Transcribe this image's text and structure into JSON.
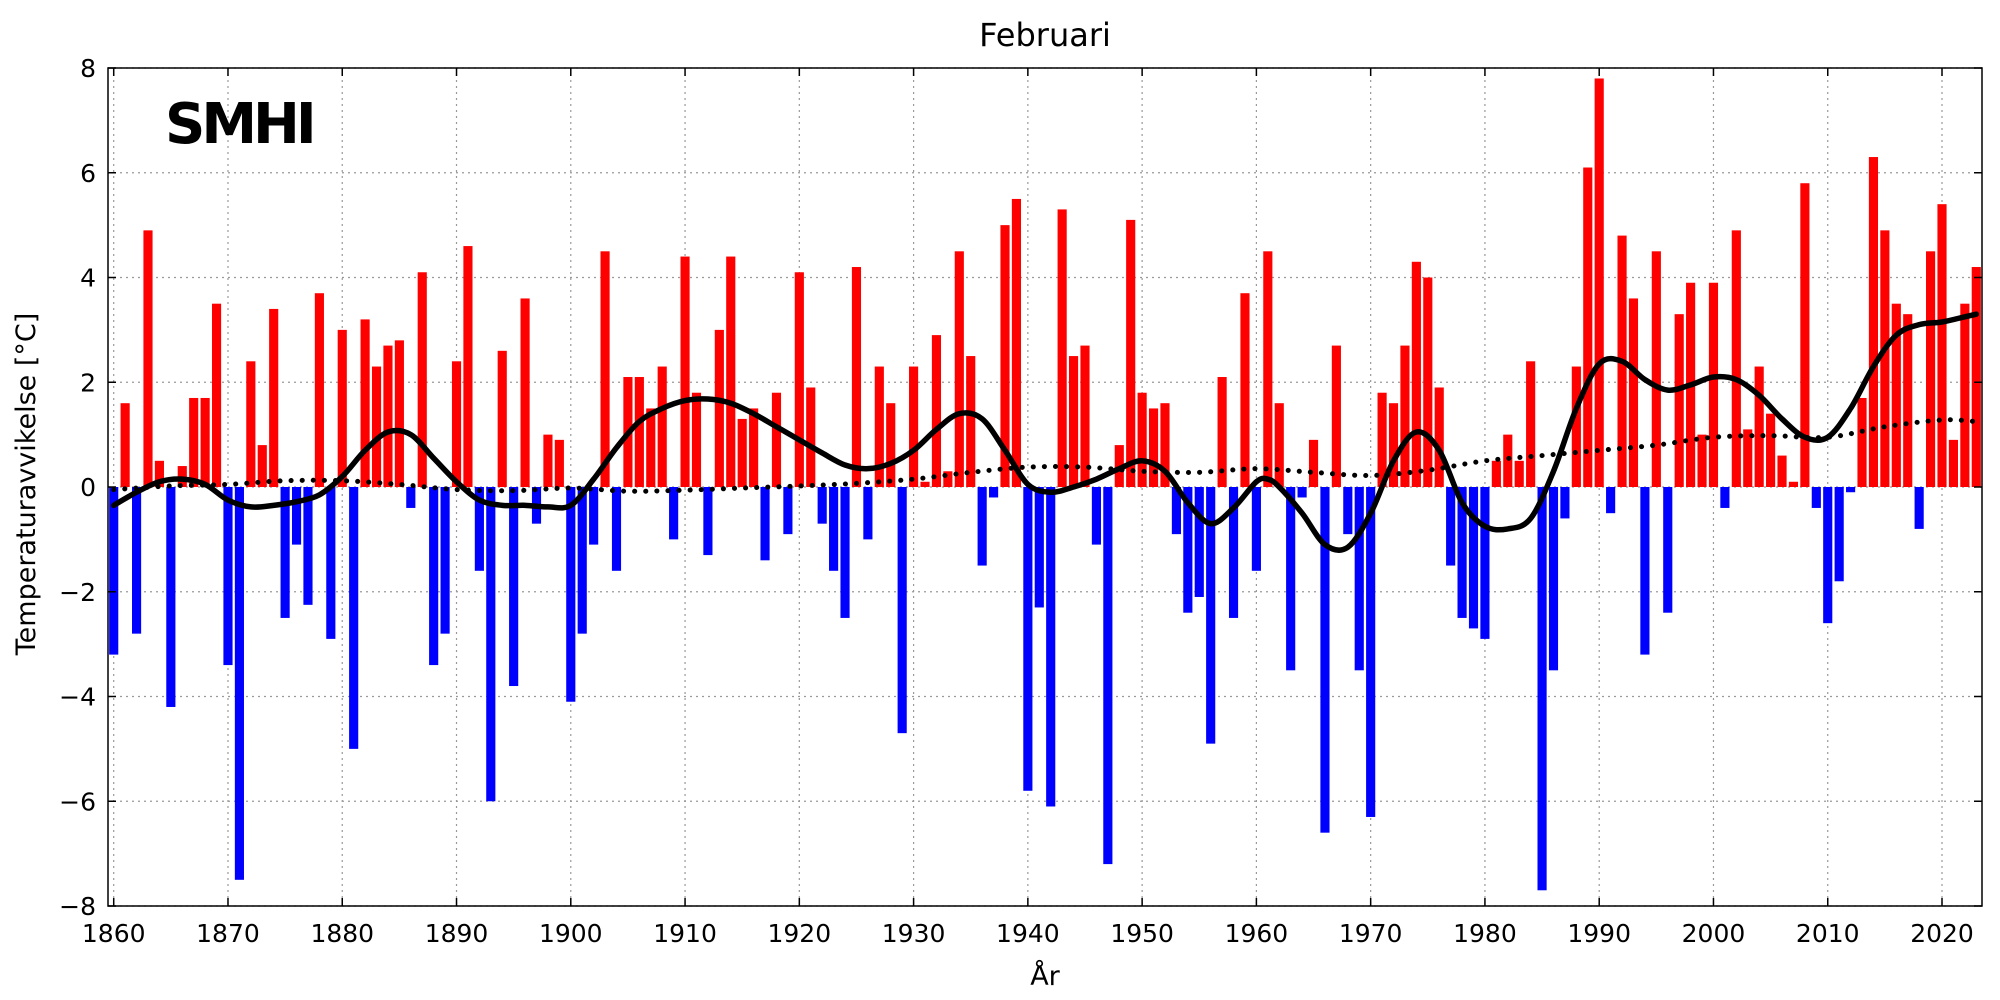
{
  "logo_text": "SMHI",
  "chart_data": {
    "type": "bar",
    "title": "Februari",
    "xlabel": "År",
    "ylabel": "Temperaturavvikelse [°C]",
    "xlim": [
      1859.5,
      2023.5
    ],
    "ylim": [
      -8,
      8
    ],
    "xticks": [
      1860,
      1870,
      1880,
      1890,
      1900,
      1910,
      1920,
      1930,
      1940,
      1950,
      1960,
      1970,
      1980,
      1990,
      2000,
      2010,
      2020
    ],
    "yticks": [
      -8,
      -6,
      -4,
      -2,
      0,
      2,
      4,
      6,
      8
    ],
    "ytick_labels": [
      "−8",
      "−6",
      "−4",
      "−2",
      "0",
      "2",
      "4",
      "6",
      "8"
    ],
    "grid": true,
    "colors": {
      "positive": "#ff0000",
      "negative": "#0000ff",
      "smooth": "#000000",
      "trend": "#000000"
    },
    "years_start": 1860,
    "values": [
      -3.2,
      1.6,
      -2.8,
      4.9,
      0.5,
      -4.2,
      0.4,
      1.7,
      1.7,
      3.5,
      -3.4,
      -7.5,
      2.4,
      0.8,
      3.4,
      -2.5,
      -1.1,
      -2.25,
      3.7,
      -2.9,
      3.0,
      -5.0,
      3.2,
      2.3,
      2.7,
      2.8,
      -0.4,
      4.1,
      -3.4,
      -2.8,
      2.4,
      4.6,
      -1.6,
      -6.0,
      2.6,
      -3.8,
      3.6,
      -0.7,
      1.0,
      0.9,
      -4.1,
      -2.8,
      -1.1,
      4.5,
      -1.6,
      2.1,
      2.1,
      1.5,
      2.3,
      -1.0,
      4.4,
      1.8,
      -1.3,
      3.0,
      4.4,
      1.3,
      1.5,
      -1.4,
      1.8,
      -0.9,
      4.1,
      1.9,
      -0.7,
      -1.6,
      -2.5,
      4.2,
      -1.0,
      2.3,
      1.6,
      -4.7,
      2.3,
      0.1,
      2.9,
      0.3,
      4.5,
      2.5,
      -1.5,
      -0.2,
      5.0,
      5.5,
      -5.8,
      -2.3,
      -6.1,
      5.3,
      2.5,
      2.7,
      -1.1,
      -7.2,
      0.8,
      5.1,
      1.8,
      1.5,
      1.6,
      -0.9,
      -2.4,
      -2.1,
      -4.9,
      2.1,
      -2.5,
      3.7,
      -1.6,
      4.5,
      1.6,
      -3.5,
      -0.2,
      0.9,
      -6.6,
      2.7,
      -0.9,
      -3.5,
      -6.3,
      1.8,
      1.6,
      2.7,
      4.3,
      4.0,
      1.9,
      -1.5,
      -2.5,
      -2.7,
      -2.9,
      0.5,
      1.0,
      0.5,
      2.4,
      -7.7,
      -3.5,
      -0.6,
      2.3,
      6.1,
      7.8,
      -0.5,
      4.8,
      3.6,
      -3.2,
      4.5,
      -2.4,
      3.3,
      3.9,
      1.0,
      3.9,
      -0.4,
      4.9,
      1.1,
      2.3,
      1.4,
      0.6,
      0.1,
      5.8,
      -0.4,
      -2.6,
      -1.8,
      -0.1,
      1.7,
      6.3,
      4.9,
      3.5,
      3.3,
      -0.8,
      4.5,
      5.4,
      0.9,
      3.5,
      4.2
    ],
    "smoothed_curve": [
      [
        1860,
        -0.35
      ],
      [
        1862,
        -0.1
      ],
      [
        1864,
        0.1
      ],
      [
        1866,
        0.15
      ],
      [
        1868,
        0.05
      ],
      [
        1870,
        -0.25
      ],
      [
        1872,
        -0.38
      ],
      [
        1874,
        -0.35
      ],
      [
        1876,
        -0.28
      ],
      [
        1878,
        -0.15
      ],
      [
        1880,
        0.2
      ],
      [
        1882,
        0.7
      ],
      [
        1884,
        1.05
      ],
      [
        1886,
        1.0
      ],
      [
        1888,
        0.55
      ],
      [
        1890,
        0.1
      ],
      [
        1892,
        -0.25
      ],
      [
        1894,
        -0.35
      ],
      [
        1896,
        -0.35
      ],
      [
        1898,
        -0.38
      ],
      [
        1900,
        -0.35
      ],
      [
        1902,
        0.15
      ],
      [
        1904,
        0.75
      ],
      [
        1906,
        1.25
      ],
      [
        1908,
        1.5
      ],
      [
        1910,
        1.65
      ],
      [
        1912,
        1.68
      ],
      [
        1914,
        1.6
      ],
      [
        1916,
        1.4
      ],
      [
        1918,
        1.15
      ],
      [
        1920,
        0.9
      ],
      [
        1922,
        0.65
      ],
      [
        1924,
        0.42
      ],
      [
        1926,
        0.35
      ],
      [
        1928,
        0.45
      ],
      [
        1930,
        0.7
      ],
      [
        1932,
        1.1
      ],
      [
        1934,
        1.4
      ],
      [
        1936,
        1.3
      ],
      [
        1938,
        0.7
      ],
      [
        1940,
        0.05
      ],
      [
        1942,
        -0.1
      ],
      [
        1944,
        0.0
      ],
      [
        1946,
        0.15
      ],
      [
        1948,
        0.35
      ],
      [
        1950,
        0.5
      ],
      [
        1952,
        0.3
      ],
      [
        1954,
        -0.3
      ],
      [
        1956,
        -0.7
      ],
      [
        1958,
        -0.4
      ],
      [
        1960,
        0.1
      ],
      [
        1961,
        0.15
      ],
      [
        1962,
        0.0
      ],
      [
        1964,
        -0.5
      ],
      [
        1966,
        -1.1
      ],
      [
        1968,
        -1.15
      ],
      [
        1970,
        -0.5
      ],
      [
        1972,
        0.5
      ],
      [
        1974,
        1.05
      ],
      [
        1976,
        0.7
      ],
      [
        1978,
        -0.3
      ],
      [
        1980,
        -0.75
      ],
      [
        1982,
        -0.8
      ],
      [
        1984,
        -0.6
      ],
      [
        1986,
        0.3
      ],
      [
        1988,
        1.5
      ],
      [
        1990,
        2.35
      ],
      [
        1992,
        2.4
      ],
      [
        1994,
        2.05
      ],
      [
        1996,
        1.85
      ],
      [
        1998,
        1.95
      ],
      [
        2000,
        2.1
      ],
      [
        2002,
        2.05
      ],
      [
        2004,
        1.75
      ],
      [
        2006,
        1.3
      ],
      [
        2008,
        0.95
      ],
      [
        2010,
        0.95
      ],
      [
        2012,
        1.5
      ],
      [
        2014,
        2.3
      ],
      [
        2016,
        2.9
      ],
      [
        2018,
        3.1
      ],
      [
        2020,
        3.15
      ],
      [
        2022,
        3.25
      ],
      [
        2023,
        3.3
      ]
    ],
    "trend_curve": [
      [
        1860,
        -0.05
      ],
      [
        1865,
        0.02
      ],
      [
        1870,
        0.05
      ],
      [
        1875,
        0.12
      ],
      [
        1880,
        0.12
      ],
      [
        1885,
        0.05
      ],
      [
        1890,
        -0.05
      ],
      [
        1895,
        -0.07
      ],
      [
        1900,
        -0.02
      ],
      [
        1905,
        -0.08
      ],
      [
        1910,
        -0.06
      ],
      [
        1915,
        -0.02
      ],
      [
        1920,
        0.02
      ],
      [
        1925,
        0.07
      ],
      [
        1930,
        0.15
      ],
      [
        1935,
        0.28
      ],
      [
        1940,
        0.38
      ],
      [
        1945,
        0.38
      ],
      [
        1950,
        0.3
      ],
      [
        1955,
        0.28
      ],
      [
        1960,
        0.35
      ],
      [
        1965,
        0.28
      ],
      [
        1970,
        0.22
      ],
      [
        1975,
        0.32
      ],
      [
        1980,
        0.5
      ],
      [
        1985,
        0.6
      ],
      [
        1990,
        0.7
      ],
      [
        1995,
        0.8
      ],
      [
        2000,
        0.95
      ],
      [
        2005,
        0.98
      ],
      [
        2010,
        0.95
      ],
      [
        2015,
        1.15
      ],
      [
        2020,
        1.28
      ],
      [
        2023,
        1.25
      ]
    ]
  }
}
